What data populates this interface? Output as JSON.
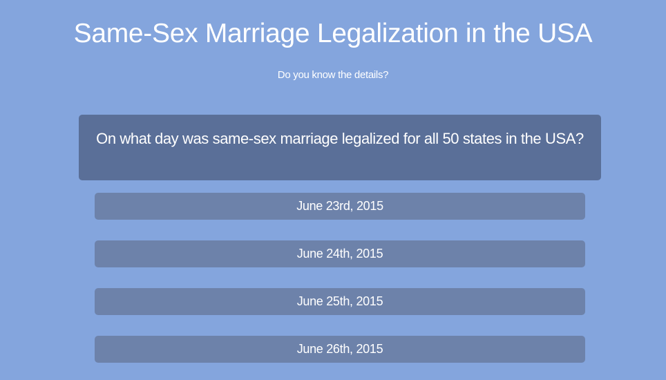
{
  "header": {
    "title": "Same-Sex Marriage Legalization in the USA",
    "subtitle": "Do you know the details?"
  },
  "quiz": {
    "question": "On what day was same-sex marriage legalized for all 50 states in the USA?",
    "answers": [
      "June 23rd, 2015",
      "June 24th, 2015",
      "June 25th, 2015",
      "June 26th, 2015"
    ]
  },
  "colors": {
    "background": "#84a5dd",
    "question_box": "#5a6f98",
    "answer_button": "#6d82aa",
    "text": "#ffffff"
  }
}
